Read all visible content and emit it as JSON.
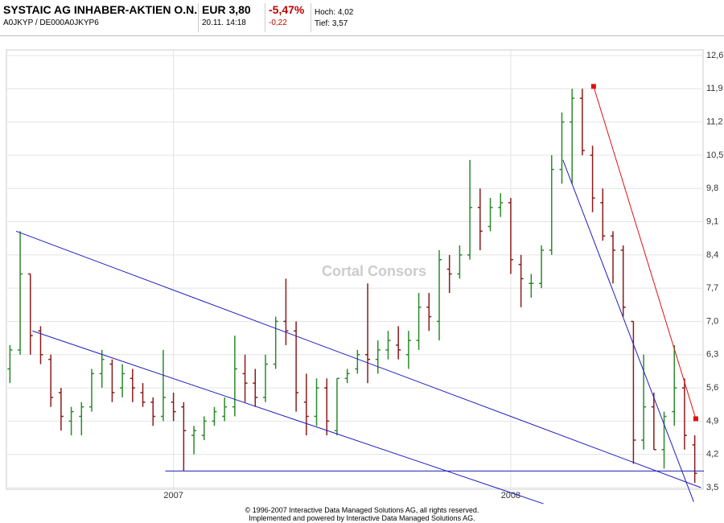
{
  "header": {
    "title": "SYSTAIC AG INHABER-AKTIEN O.N.",
    "ids": "A0JKYP  /  DE000A0JKYP6",
    "price": "EUR 3,80",
    "time": "20.11. 14:18",
    "change_pct": "-5,47%",
    "change": "-0,22",
    "high": "Hoch: 4,02",
    "low": "Tief: 3,57"
  },
  "chart_data": {
    "type": "ohlc",
    "watermark": "Cortal Consors",
    "categories": [
      null,
      null,
      null,
      null,
      null,
      null,
      null,
      null,
      null,
      null,
      null,
      null,
      null,
      null,
      null,
      null,
      "2007",
      null,
      null,
      null,
      null,
      null,
      null,
      null,
      null,
      null,
      null,
      null,
      null,
      null,
      null,
      null,
      null,
      null,
      null,
      null,
      null,
      null,
      null,
      null,
      null,
      null,
      null,
      null,
      null,
      null,
      null,
      null,
      null,
      "2008",
      null,
      null,
      null,
      null,
      null,
      null,
      null,
      null,
      null,
      null,
      null,
      null,
      null,
      null,
      null,
      null,
      null,
      null
    ],
    "ohlc": [
      [
        6.0,
        6.5,
        5.7,
        6.4
      ],
      [
        6.4,
        8.9,
        6.3,
        8.0
      ],
      [
        8.0,
        8.0,
        6.3,
        6.7
      ],
      [
        6.8,
        6.9,
        6.1,
        6.3
      ],
      [
        6.2,
        6.3,
        5.2,
        5.4
      ],
      [
        5.5,
        5.6,
        4.7,
        5.0
      ],
      [
        4.9,
        5.2,
        4.6,
        5.1
      ],
      [
        5.0,
        5.3,
        4.6,
        5.2
      ],
      [
        5.2,
        6.0,
        5.1,
        5.9
      ],
      [
        5.9,
        6.4,
        5.6,
        6.2
      ],
      [
        6.1,
        6.2,
        5.3,
        5.5
      ],
      [
        5.6,
        6.1,
        5.4,
        5.9
      ],
      [
        5.8,
        6.0,
        5.3,
        5.6
      ],
      [
        5.5,
        5.7,
        5.2,
        5.3
      ],
      [
        5.3,
        5.4,
        4.8,
        5.0
      ],
      [
        5.0,
        6.4,
        4.9,
        5.4
      ],
      [
        5.3,
        5.5,
        4.9,
        5.1
      ],
      [
        5.2,
        5.3,
        3.85,
        4.7
      ],
      [
        4.6,
        4.8,
        4.2,
        4.7
      ],
      [
        4.6,
        5.0,
        4.5,
        4.9
      ],
      [
        4.9,
        5.2,
        4.8,
        5.1
      ],
      [
        5.0,
        5.4,
        4.9,
        5.2
      ],
      [
        5.2,
        6.7,
        5.0,
        6.0
      ],
      [
        5.9,
        6.3,
        5.3,
        5.7
      ],
      [
        5.7,
        6.0,
        5.2,
        5.4
      ],
      [
        5.4,
        6.3,
        5.3,
        6.1
      ],
      [
        6.1,
        7.1,
        6.0,
        7.0
      ],
      [
        7.0,
        7.9,
        6.5,
        6.8
      ],
      [
        6.8,
        7.0,
        5.1,
        5.5
      ],
      [
        5.3,
        5.9,
        4.6,
        5.0
      ],
      [
        5.0,
        5.8,
        4.8,
        5.6
      ],
      [
        5.6,
        5.8,
        4.6,
        4.9
      ],
      [
        4.7,
        5.8,
        4.6,
        5.8
      ],
      [
        5.8,
        6.0,
        5.7,
        5.9
      ],
      [
        6.0,
        6.4,
        5.9,
        6.3
      ],
      [
        6.3,
        7.8,
        5.7,
        6.2
      ],
      [
        6.2,
        6.6,
        5.9,
        6.4
      ],
      [
        6.4,
        6.8,
        6.2,
        6.6
      ],
      [
        6.5,
        6.9,
        6.2,
        6.4
      ],
      [
        6.3,
        6.8,
        6.0,
        6.6
      ],
      [
        6.6,
        7.6,
        6.4,
        7.3
      ],
      [
        7.3,
        7.6,
        6.8,
        7.1
      ],
      [
        7.0,
        8.5,
        6.6,
        8.3
      ],
      [
        8.1,
        8.4,
        7.6,
        8.0
      ],
      [
        8.0,
        8.6,
        7.9,
        8.4
      ],
      [
        8.4,
        10.4,
        8.3,
        9.4
      ],
      [
        9.4,
        9.8,
        8.5,
        8.9
      ],
      [
        9.0,
        9.6,
        8.9,
        9.4
      ],
      [
        9.4,
        9.7,
        9.2,
        9.5
      ],
      [
        9.5,
        9.6,
        8.0,
        8.3
      ],
      [
        8.2,
        8.4,
        7.3,
        7.9
      ],
      [
        7.8,
        8.0,
        7.5,
        7.8
      ],
      [
        7.8,
        8.6,
        7.7,
        8.5
      ],
      [
        8.5,
        10.5,
        8.4,
        10.2
      ],
      [
        10.2,
        11.4,
        9.9,
        11.2
      ],
      [
        11.2,
        11.9,
        9.9,
        11.7
      ],
      [
        11.7,
        11.9,
        10.5,
        10.6
      ],
      [
        10.5,
        10.7,
        9.3,
        9.6
      ],
      [
        9.5,
        9.8,
        8.7,
        8.8
      ],
      [
        8.8,
        8.9,
        7.8,
        8.5
      ],
      [
        8.5,
        8.6,
        7.1,
        7.3
      ],
      [
        7.0,
        7.0,
        4.0,
        4.5
      ],
      [
        4.5,
        6.3,
        4.3,
        5.2
      ],
      [
        5.2,
        5.5,
        4.3,
        4.3
      ],
      [
        4.3,
        5.1,
        3.9,
        5.0
      ],
      [
        5.1,
        6.5,
        4.8,
        5.6
      ],
      [
        5.6,
        5.8,
        4.3,
        4.6
      ],
      [
        4.4,
        4.6,
        3.6,
        3.8
      ]
    ],
    "up_color": "#2a8a2a",
    "down_color": "#8b1a1a",
    "lines": [
      {
        "color": "#1f1fbf",
        "x": [
          0.6,
          67.6
        ],
        "y": [
          8.9,
          3.5
        ]
      },
      {
        "color": "#1f1fbf",
        "x": [
          2.2,
          52.2
        ],
        "y": [
          6.8,
          3.16
        ]
      },
      {
        "color": "#1f1fbf",
        "x": [
          54.1,
          66.9
        ],
        "y": [
          10.4,
          3.2
        ]
      },
      {
        "color": "#1f1fbf",
        "x": [
          15.2,
          67.9
        ],
        "y": [
          3.85,
          3.85
        ]
      },
      {
        "color": "#e01010",
        "x": [
          57.1,
          67.1
        ],
        "y": [
          11.95,
          4.95
        ],
        "markers": true
      }
    ],
    "ylim": [
      3.5,
      12.6
    ],
    "yticks": [
      {
        "value": 3.5,
        "label": "3,5"
      },
      {
        "value": 4.2,
        "label": "4,2"
      },
      {
        "value": 4.9,
        "label": "4,9"
      },
      {
        "value": 5.6,
        "label": "5,6"
      },
      {
        "value": 6.3,
        "label": "6,3"
      },
      {
        "value": 7.0,
        "label": "7,0"
      },
      {
        "value": 7.7,
        "label": "7,7"
      },
      {
        "value": 8.4,
        "label": "8,4"
      },
      {
        "value": 9.1,
        "label": "9,1"
      },
      {
        "value": 9.8,
        "label": "9,8"
      },
      {
        "value": 10.5,
        "label": "10,5"
      },
      {
        "value": 11.2,
        "label": "11,2"
      },
      {
        "value": 11.9,
        "label": "11,9"
      },
      {
        "value": 12.6,
        "label": "12,6"
      }
    ],
    "grid": true
  },
  "footer": [
    "© 1996-2007 Interactive Data Managed Solutions AG, all rights reserved.",
    "Implemented and powered by Interactive Data Managed Solutions AG."
  ]
}
